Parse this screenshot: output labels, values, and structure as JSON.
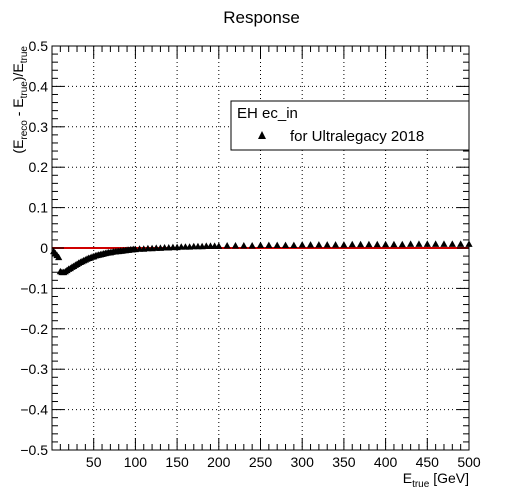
{
  "chart_data": {
    "type": "scatter",
    "title": "Response",
    "xlabel": {
      "main": "E",
      "sub": "true",
      "unit": " [GeV]"
    },
    "ylabel": {
      "parts": [
        {
          "t": "(E",
          "sub": false
        },
        {
          "t": "reco",
          "sub": true
        },
        {
          "t": " - E",
          "sub": false
        },
        {
          "t": "true",
          "sub": true
        },
        {
          "t": ")/E",
          "sub": false
        },
        {
          "t": "true",
          "sub": true
        }
      ]
    },
    "xlim": [
      0,
      500
    ],
    "ylim": [
      -0.5,
      0.5
    ],
    "x_ticks": [
      50,
      100,
      150,
      200,
      250,
      300,
      350,
      400,
      450,
      500
    ],
    "y_ticks": [
      -0.5,
      -0.4,
      -0.3,
      -0.2,
      -0.1,
      0,
      0.1,
      0.2,
      0.3,
      0.4,
      0.5
    ],
    "x_tick_labels": [
      "50",
      "100",
      "150",
      "200",
      "250",
      "300",
      "350",
      "400",
      "450",
      "500"
    ],
    "y_tick_labels": [
      "−0.5",
      "−0.4",
      "−0.3",
      "−0.2",
      "−0.1",
      "0",
      "0.1",
      "0.2",
      "0.3",
      "0.4",
      "0.5"
    ],
    "grid": true,
    "reference_line": {
      "y": 0,
      "color": "#d00000"
    },
    "legend": {
      "header": "EH ec_in",
      "placement": "top-right",
      "entries": [
        {
          "label": "for Ultralegacy 2018",
          "marker": "triangle",
          "color": "#000000"
        }
      ]
    },
    "series": [
      {
        "name": "for Ultralegacy 2018",
        "marker": "triangle",
        "color": "#000000",
        "x": [
          2,
          4,
          6,
          8,
          10,
          12,
          14,
          16,
          18,
          20,
          22,
          24,
          26,
          28,
          30,
          32,
          34,
          36,
          38,
          40,
          42,
          44,
          46,
          48,
          50,
          52,
          54,
          56,
          58,
          60,
          62,
          64,
          66,
          68,
          70,
          72,
          74,
          76,
          78,
          80,
          82,
          84,
          86,
          88,
          90,
          92,
          94,
          96,
          98,
          100,
          105,
          110,
          115,
          120,
          125,
          130,
          135,
          140,
          145,
          150,
          155,
          160,
          165,
          170,
          175,
          180,
          185,
          190,
          195,
          200,
          210,
          220,
          230,
          240,
          250,
          260,
          270,
          280,
          290,
          300,
          310,
          320,
          330,
          340,
          350,
          360,
          370,
          380,
          390,
          400,
          410,
          420,
          430,
          440,
          450,
          460,
          470,
          480,
          490,
          500
        ],
        "y": [
          -0.008,
          -0.013,
          -0.018,
          -0.023,
          -0.058,
          -0.06,
          -0.06,
          -0.058,
          -0.055,
          -0.052,
          -0.05,
          -0.047,
          -0.045,
          -0.042,
          -0.04,
          -0.037,
          -0.035,
          -0.033,
          -0.031,
          -0.029,
          -0.027,
          -0.025,
          -0.024,
          -0.022,
          -0.021,
          -0.019,
          -0.018,
          -0.017,
          -0.016,
          -0.015,
          -0.014,
          -0.013,
          -0.012,
          -0.011,
          -0.011,
          -0.01,
          -0.009,
          -0.009,
          -0.008,
          -0.008,
          -0.007,
          -0.007,
          -0.006,
          -0.006,
          -0.005,
          -0.005,
          -0.004,
          -0.004,
          -0.003,
          -0.003,
          -0.002,
          -0.002,
          -0.001,
          -0.001,
          0.0,
          0.0,
          0.001,
          0.001,
          0.002,
          0.002,
          0.003,
          0.003,
          0.003,
          0.004,
          0.004,
          0.004,
          0.005,
          0.005,
          0.005,
          0.005,
          0.006,
          0.006,
          0.006,
          0.006,
          0.007,
          0.007,
          0.007,
          0.007,
          0.007,
          0.008,
          0.008,
          0.008,
          0.008,
          0.008,
          0.008,
          0.009,
          0.009,
          0.009,
          0.009,
          0.009,
          0.009,
          0.009,
          0.01,
          0.01,
          0.01,
          0.01,
          0.01,
          0.01,
          0.01,
          0.01
        ]
      }
    ]
  }
}
